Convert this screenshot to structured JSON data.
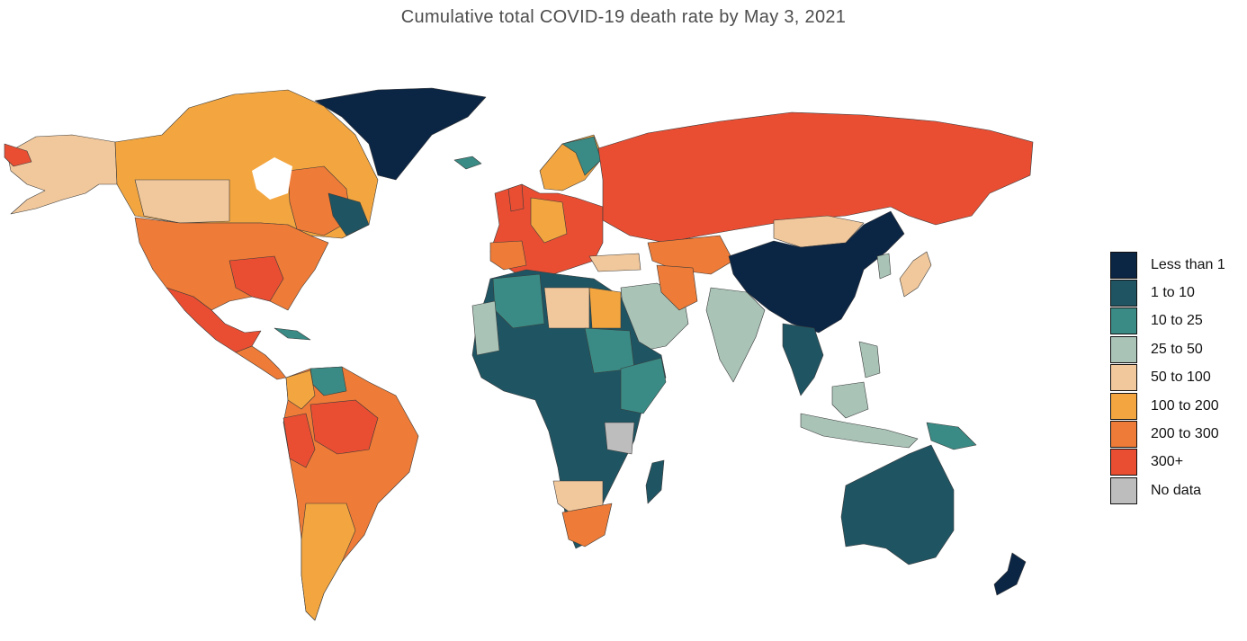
{
  "title": "Cumulative total COVID-19 death rate by May 3, 2021",
  "legend": {
    "items": [
      {
        "label": "Less than 1",
        "color": "#0b2545"
      },
      {
        "label": "1 to 10",
        "color": "#1f5563"
      },
      {
        "label": "10 to 25",
        "color": "#3a8b85"
      },
      {
        "label": "25 to 50",
        "color": "#a9c3b7"
      },
      {
        "label": "50 to 100",
        "color": "#f1c89c"
      },
      {
        "label": "100 to 200",
        "color": "#f3a640"
      },
      {
        "label": "200 to 300",
        "color": "#ee7b37"
      },
      {
        "label": "300+",
        "color": "#e94e33"
      },
      {
        "label": "No data",
        "color": "#bdbdbd"
      }
    ]
  }
}
